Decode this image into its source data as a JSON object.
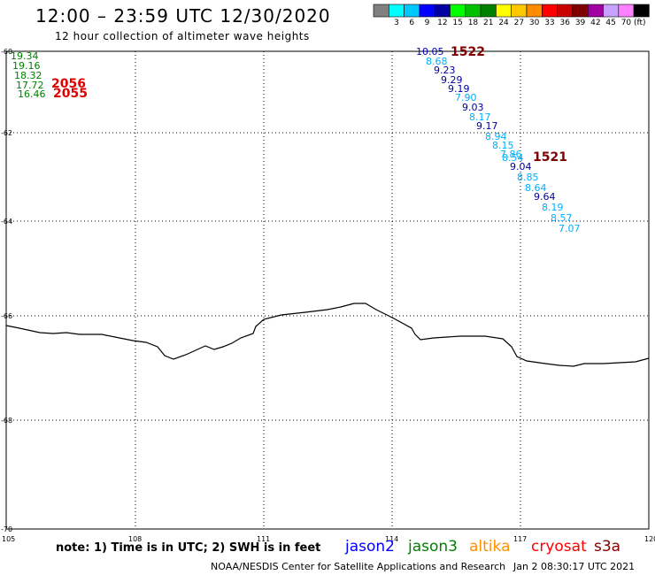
{
  "header": {
    "title": "12:00 – 23:59 UTC 12/30/2020",
    "subtitle": "12 hour collection of altimeter wave heights"
  },
  "color_key": {
    "unit": "(ft)",
    "bins": [
      {
        "label": "",
        "color": "#808080"
      },
      {
        "label": "3",
        "color": "#00ffff"
      },
      {
        "label": "6",
        "color": "#00c8ff"
      },
      {
        "label": "9",
        "color": "#0000ff"
      },
      {
        "label": "12",
        "color": "#0000a0"
      },
      {
        "label": "15",
        "color": "#00ff00"
      },
      {
        "label": "18",
        "color": "#00c000"
      },
      {
        "label": "21",
        "color": "#008000"
      },
      {
        "label": "24",
        "color": "#ffff00"
      },
      {
        "label": "27",
        "color": "#ffc800"
      },
      {
        "label": "30",
        "color": "#ff8c00"
      },
      {
        "label": "33",
        "color": "#ff0000"
      },
      {
        "label": "36",
        "color": "#c80000"
      },
      {
        "label": "39",
        "color": "#800000"
      },
      {
        "label": "42",
        "color": "#a000a0"
      },
      {
        "label": "45",
        "color": "#c8a0ff"
      },
      {
        "label": "70",
        "color": "#ff80ff"
      },
      {
        "label": "",
        "color": "#000000"
      }
    ]
  },
  "axes": {
    "lat_labels": [
      "-60",
      "-62",
      "-64",
      "-66",
      "-68",
      "-70"
    ],
    "lon_labels": [
      "105",
      "108",
      "111",
      "114",
      "117",
      "120"
    ]
  },
  "tracks": {
    "left": {
      "color": "#008000",
      "values": [
        "19.34",
        "19.16",
        "18.32",
        "17.72",
        "16.46"
      ],
      "times": [
        "2056",
        "2055"
      ],
      "time_color": "#e00000"
    },
    "right": {
      "values": [
        {
          "v": "10.05",
          "c": "#0000c0"
        },
        {
          "v": "8.68",
          "c": "#00b0ff"
        },
        {
          "v": "9.23",
          "c": "#0000a0"
        },
        {
          "v": "9.29",
          "c": "#0000a0"
        },
        {
          "v": "9.19",
          "c": "#0000a0"
        },
        {
          "v": "7.90",
          "c": "#00b0ff"
        },
        {
          "v": "9.03",
          "c": "#0000a0"
        },
        {
          "v": "8.17",
          "c": "#00b0ff"
        },
        {
          "v": "9.17",
          "c": "#0000a0"
        },
        {
          "v": "8.94",
          "c": "#00b0ff"
        },
        {
          "v": "8.15",
          "c": "#00b0ff"
        },
        {
          "v": "7.86",
          "c": "#00b0ff"
        },
        {
          "v": "8.54",
          "c": "#00b0ff"
        },
        {
          "v": "9.04",
          "c": "#0000a0"
        },
        {
          "v": "8.85",
          "c": "#00b0ff"
        },
        {
          "v": "8.64",
          "c": "#00b0ff"
        },
        {
          "v": "9.64",
          "c": "#0000a0"
        },
        {
          "v": "8.19",
          "c": "#00b0ff"
        },
        {
          "v": "8.57",
          "c": "#00b0ff"
        },
        {
          "v": "7.07",
          "c": "#00b0ff"
        }
      ],
      "times": [
        "1522",
        "1521"
      ],
      "time_color": "#800000"
    }
  },
  "footer": {
    "note": "note:  1) Time is in UTC;  2) SWH is in feet",
    "satellites": [
      {
        "name": "jason2",
        "color": "#0000ff"
      },
      {
        "name": "jason3",
        "color": "#008000"
      },
      {
        "name": "altika",
        "color": "#ff9000"
      },
      {
        "name": "cryosat",
        "color": "#ff0000"
      },
      {
        "name": "s3a",
        "color": "#800000"
      }
    ],
    "credit": "NOAA/NESDIS Center for Satellite Applications and Research",
    "timestamp": "Jan  2 08:30:17 UTC 2021"
  }
}
